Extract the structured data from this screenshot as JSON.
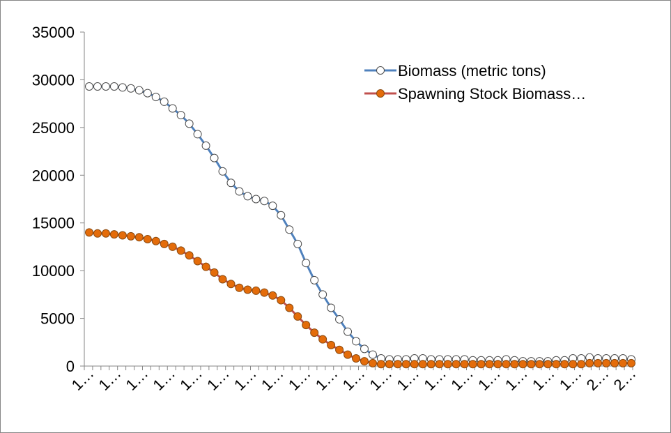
{
  "chart_data": {
    "type": "line",
    "title": "",
    "xlabel": "",
    "ylabel": "",
    "ylim": [
      0,
      35000
    ],
    "y_ticks": [
      0,
      5000,
      10000,
      15000,
      20000,
      25000,
      30000,
      35000
    ],
    "x_tick_labels": [
      "1…",
      "1…",
      "1…",
      "1…",
      "1…",
      "1…",
      "1…",
      "1…",
      "1…",
      "1…",
      "1…",
      "1…",
      "1…",
      "1…",
      "1…",
      "1…",
      "1…",
      "1…",
      "1…",
      "2…",
      "2…"
    ],
    "grid": false,
    "legend_position": "top-right",
    "series": [
      {
        "name": "Biomass (metric tons)",
        "line_color": "#4f81bd",
        "marker_fill": "#ffffff",
        "marker_stroke": "#4a4a4a",
        "values": [
          29300,
          29300,
          29300,
          29300,
          29200,
          29100,
          28900,
          28600,
          28200,
          27700,
          27000,
          26300,
          25400,
          24300,
          23100,
          21800,
          20400,
          19200,
          18300,
          17800,
          17500,
          17300,
          16800,
          15800,
          14300,
          12800,
          10800,
          9000,
          7500,
          6100,
          4900,
          3600,
          2600,
          1800,
          1200,
          800,
          700,
          700,
          700,
          800,
          800,
          700,
          700,
          700,
          700,
          700,
          600,
          600,
          600,
          600,
          700,
          600,
          500,
          500,
          500,
          500,
          600,
          600,
          800,
          800,
          900,
          800,
          800,
          800,
          800,
          700
        ]
      },
      {
        "name": "Spawning Stock Biomass…",
        "line_color": "#c0504d",
        "marker_fill": "#e46c0a",
        "marker_stroke": "#8a4a10",
        "values": [
          14000,
          13900,
          13900,
          13800,
          13700,
          13600,
          13500,
          13300,
          13100,
          12800,
          12500,
          12100,
          11600,
          11000,
          10400,
          9800,
          9100,
          8600,
          8200,
          8000,
          7900,
          7700,
          7400,
          6900,
          6100,
          5200,
          4300,
          3500,
          2800,
          2200,
          1700,
          1200,
          800,
          500,
          300,
          200,
          200,
          200,
          200,
          200,
          200,
          200,
          200,
          200,
          200,
          200,
          200,
          200,
          200,
          200,
          200,
          200,
          200,
          200,
          200,
          200,
          200,
          200,
          200,
          200,
          300,
          300,
          300,
          300,
          300,
          300
        ]
      }
    ]
  }
}
